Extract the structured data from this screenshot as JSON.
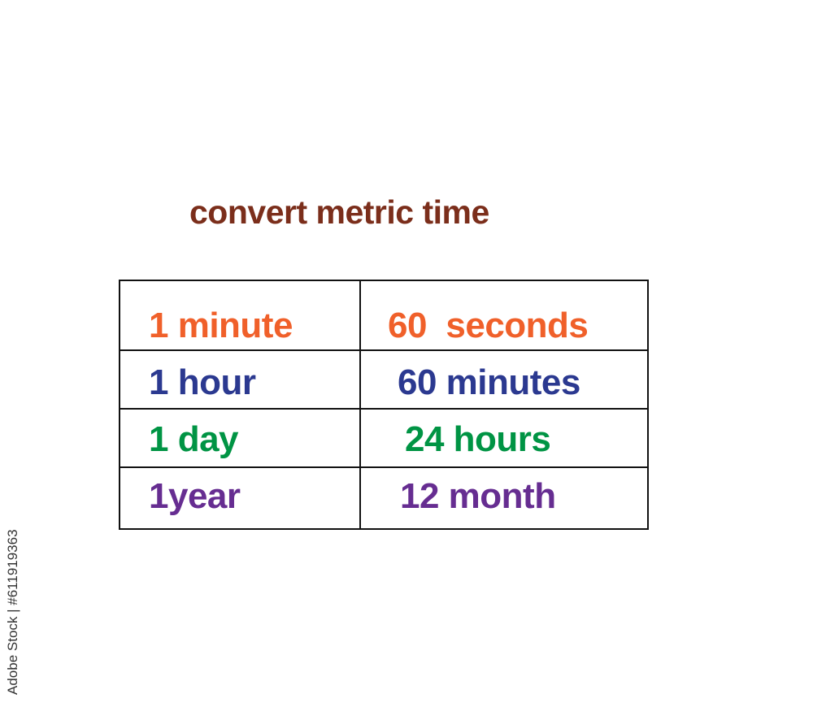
{
  "title": {
    "text": "convert metric time",
    "color": "#7b2e1b"
  },
  "table": {
    "rows": [
      {
        "left": "1 minute",
        "right": "60  seconds",
        "color": "#f0602a"
      },
      {
        "left": "1 hour",
        "right": "60 minutes",
        "color": "#2b3990"
      },
      {
        "left": "1 day",
        "right": "24 hours",
        "color": "#009444"
      },
      {
        "left": "1year",
        "right": "12 month",
        "color": "#662d91"
      }
    ]
  },
  "watermark": "Adobe Stock | #611919363"
}
